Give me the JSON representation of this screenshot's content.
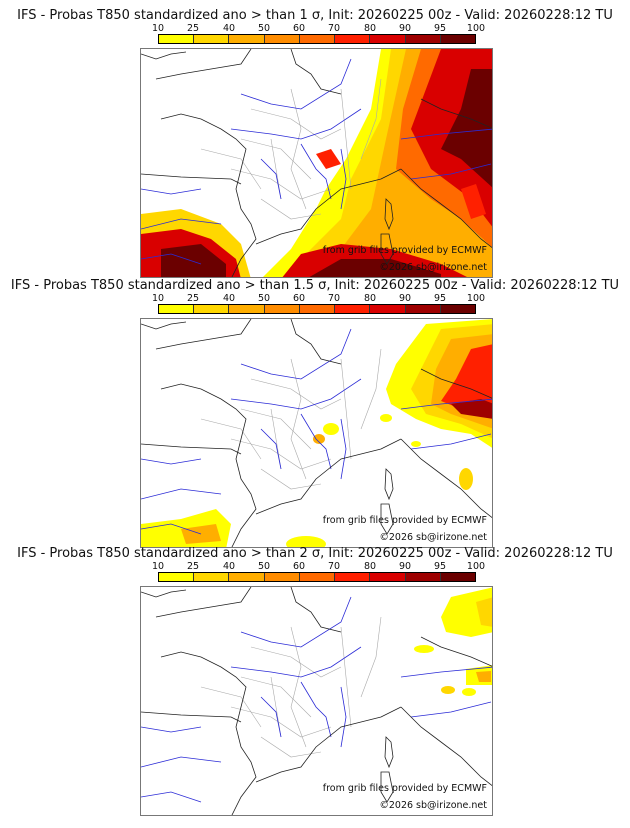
{
  "colorbar": {
    "ticks": [
      "10",
      "25",
      "40",
      "50",
      "60",
      "70",
      "80",
      "90",
      "95",
      "100"
    ],
    "colors": [
      "#ffff00",
      "#ffd700",
      "#ffae00",
      "#ff8c00",
      "#ff6a00",
      "#ff2000",
      "#d90000",
      "#9e0000",
      "#6b0000"
    ]
  },
  "panels": [
    {
      "title": "IFS - Probas T850  standardized ano > than 1 σ, Init: 20260225 00z - Valid: 20260228:12 TU",
      "threshold_sigma": 1,
      "source_credit": "from grib files provided by ECMWF",
      "copyright": "©2026 sb@irizone.net"
    },
    {
      "title": "IFS - Probas T850  standardized ano > than 1.5 σ, Init: 20260225 00z - Valid: 20260228:12 TU",
      "threshold_sigma": 1.5,
      "source_credit": "from grib files provided by ECMWF",
      "copyright": "©2026 sb@irizone.net"
    },
    {
      "title": "IFS - Probas T850  standardized ano > than 2 σ, Init: 20260225 00z - Valid: 20260228:12 TU",
      "threshold_sigma": 2,
      "source_credit": "from grib files provided by ECMWF",
      "copyright": "©2026 sb@irizone.net"
    }
  ]
}
